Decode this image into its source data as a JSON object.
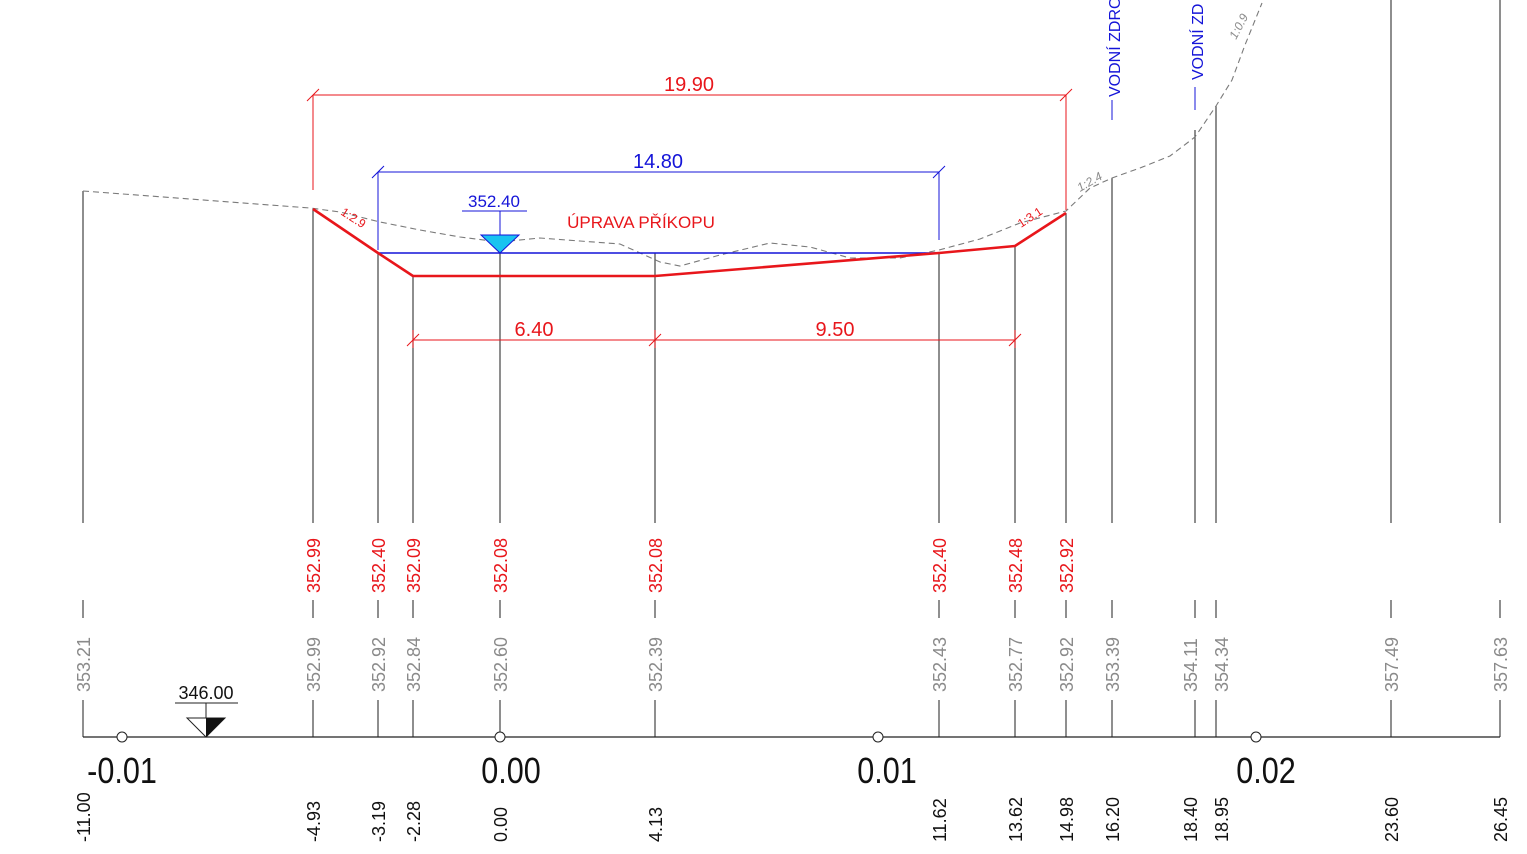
{
  "drawing": {
    "ditch_label": "ÚPRAVA PŘÍKOPU",
    "water_level": "352.40",
    "datum_level": "346.00",
    "dim_top": "19.90",
    "dim_water": "14.80",
    "dim_left": "6.40",
    "dim_right": "9.50",
    "slope_left": "1:2.9",
    "slope_right": "1:3.1",
    "slope_terrain_1": "1:2.4",
    "slope_terrain_2": "1:0.9",
    "utility_1": "VODNÍ ZDROJ",
    "utility_2": "VODNÍ ZD",
    "colors": {
      "design": "#e8161b",
      "water": "#1414d8",
      "terrain": "#8a8a8a",
      "water_fill": "#19c3f0"
    }
  },
  "stations": [
    {
      "offset": "-11.00",
      "terrain": "353.21",
      "design": ""
    },
    {
      "offset": "-4.93",
      "terrain": "352.99",
      "design": "352.99"
    },
    {
      "offset": "-3.19",
      "terrain": "352.92",
      "design": "352.40"
    },
    {
      "offset": "-2.28",
      "terrain": "352.84",
      "design": "352.09"
    },
    {
      "offset": "0.00",
      "terrain": "352.60",
      "design": "352.08"
    },
    {
      "offset": "4.13",
      "terrain": "352.39",
      "design": "352.08"
    },
    {
      "offset": "11.62",
      "terrain": "352.43",
      "design": "352.40"
    },
    {
      "offset": "13.62",
      "terrain": "352.77",
      "design": "352.48"
    },
    {
      "offset": "14.98",
      "terrain": "352.92",
      "design": "352.92"
    },
    {
      "offset": "16.20",
      "terrain": "353.39",
      "design": ""
    },
    {
      "offset": "18.40",
      "terrain": "354.11",
      "design": ""
    },
    {
      "offset": "18.95",
      "terrain": "354.34",
      "design": ""
    },
    {
      "offset": "23.60",
      "terrain": "357.49",
      "design": ""
    },
    {
      "offset": "26.45",
      "terrain": "357.63",
      "design": ""
    }
  ],
  "axis_ticks": [
    "-0.01",
    "0.00",
    "0.01",
    "0.02"
  ]
}
